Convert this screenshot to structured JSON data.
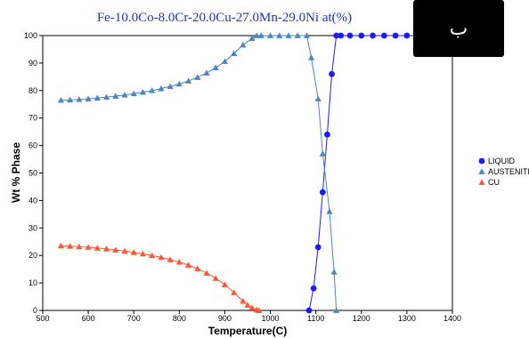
{
  "badge_text": "ب",
  "chart_data": {
    "type": "line",
    "title": "Fe-10.0Co-8.0Cr-20.0Cu-27.0Mn-29.0Ni at(%)",
    "xlabel": "Temperature(C)",
    "ylabel": "Wt % Phase",
    "xlim": [
      500,
      1400
    ],
    "ylim": [
      0,
      100
    ],
    "xticks": [
      500,
      600,
      700,
      800,
      900,
      1000,
      1100,
      1200,
      1300,
      1400
    ],
    "yticks": [
      0,
      10,
      20,
      30,
      40,
      50,
      60,
      70,
      80,
      90,
      100
    ],
    "grid": false,
    "legend_position": "right",
    "series": [
      {
        "name": "LIQUID",
        "color": "#1a1aff",
        "marker": "circle",
        "x": [
          1085,
          1095,
          1105,
          1115,
          1125,
          1135,
          1145,
          1155,
          1175,
          1200,
          1225,
          1250,
          1275,
          1300,
          1325,
          1350,
          1375,
          1400
        ],
        "y": [
          0,
          8,
          23,
          43,
          64,
          86,
          100,
          100,
          100,
          100,
          100,
          100,
          100,
          100,
          100,
          100,
          100,
          100
        ]
      },
      {
        "name": "AUSTENITE",
        "color": "#4a86c0",
        "marker": "triangle",
        "x": [
          540,
          560,
          580,
          600,
          620,
          640,
          660,
          680,
          700,
          720,
          740,
          760,
          780,
          800,
          820,
          840,
          860,
          880,
          900,
          920,
          940,
          960,
          970,
          980,
          1000,
          1020,
          1040,
          1060,
          1080,
          1090,
          1105,
          1115,
          1130,
          1140,
          1145
        ],
        "y": [
          76.5,
          76.6,
          76.8,
          77,
          77.3,
          77.6,
          78,
          78.4,
          78.9,
          79.4,
          80,
          80.7,
          81.5,
          82.4,
          83.5,
          84.8,
          86.4,
          88.3,
          90.6,
          93.5,
          96.6,
          99,
          100,
          100,
          100,
          100,
          100,
          100,
          100,
          92,
          77,
          57,
          36,
          14,
          0
        ]
      },
      {
        "name": "CU",
        "color": "#ff5533",
        "marker": "triangle",
        "x": [
          540,
          560,
          580,
          600,
          620,
          640,
          660,
          680,
          700,
          720,
          740,
          760,
          780,
          800,
          820,
          840,
          860,
          880,
          900,
          920,
          940,
          950,
          960,
          970,
          975
        ],
        "y": [
          23.5,
          23.4,
          23.2,
          23,
          22.7,
          22.4,
          22,
          21.6,
          21.1,
          20.6,
          20,
          19.3,
          18.5,
          17.6,
          16.5,
          15.2,
          13.6,
          11.7,
          9.4,
          6.5,
          3.4,
          2,
          1,
          0.2,
          0
        ]
      }
    ]
  }
}
